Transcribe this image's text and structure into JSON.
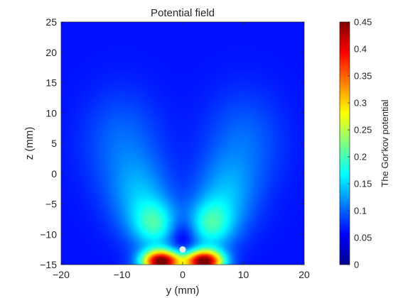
{
  "chart_data": {
    "type": "heatmap",
    "title": "Potential field",
    "xlabel": "y (mm)",
    "ylabel": "z (mm)",
    "xlim": [
      -20,
      20
    ],
    "ylim": [
      -15,
      25
    ],
    "xticks": [
      -20,
      -10,
      0,
      10,
      20
    ],
    "yticks": [
      25,
      20,
      15,
      10,
      5,
      0,
      -5,
      -10,
      -15
    ],
    "xtick_labels": [
      "−20",
      "−10",
      "0",
      "10",
      "20"
    ],
    "ytick_labels": [
      "25",
      "20",
      "15",
      "10",
      "5",
      "0",
      "−5",
      "−10",
      "−15"
    ],
    "colormap": "jet",
    "grid": false,
    "colorbar": {
      "label": "The Gor'kov potential",
      "range": [
        0,
        0.45
      ],
      "ticks": [
        0,
        0.05,
        0.1,
        0.15,
        0.2,
        0.25,
        0.3,
        0.35,
        0.4,
        0.45
      ],
      "tick_labels": [
        "0",
        "0.05",
        "0.1",
        "0.15",
        "0.2",
        "0.25",
        "0.3",
        "0.35",
        "0.4",
        "0.45"
      ]
    },
    "features": [
      {
        "y": -3.5,
        "z": -14.5,
        "value": 0.44
      },
      {
        "y": 3.5,
        "z": -14.5,
        "value": 0.44
      },
      {
        "y": -4.5,
        "z": -8.5,
        "value": 0.12
      },
      {
        "y": 4.5,
        "z": -8.5,
        "value": 0.12
      },
      {
        "y": -7,
        "z": -4,
        "value": 0.07
      },
      {
        "y": 7,
        "z": -4,
        "value": 0.07
      },
      {
        "y": -10,
        "z": 5,
        "value": 0.045
      },
      {
        "y": 10,
        "z": 5,
        "value": 0.045
      }
    ],
    "background_value": 0.02,
    "marker": {
      "y": 0,
      "z": -12.5,
      "color": "#e6e6e6"
    }
  }
}
